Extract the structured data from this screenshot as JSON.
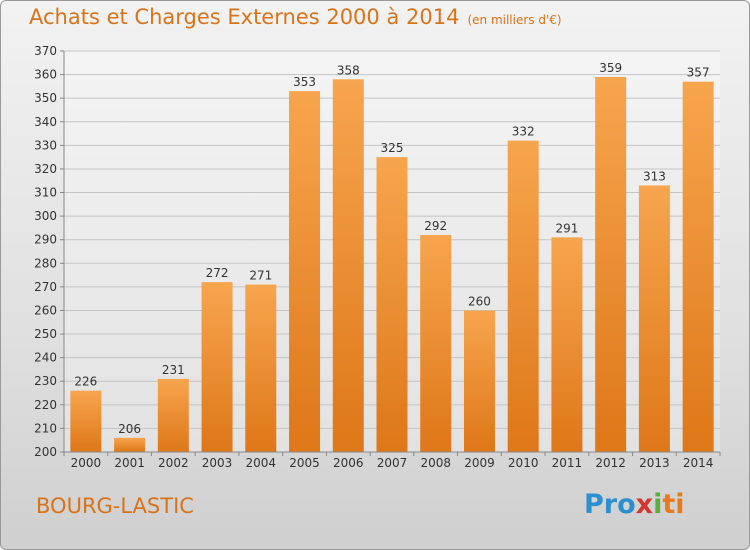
{
  "title": "Achats et Charges Externes 2000 à 2014",
  "subtitle": "(en milliers d'€)",
  "commune": "BOURG-LASTIC",
  "logo": {
    "p1": "Pro",
    "p2": "x",
    "p3": "i",
    "p4": "ti"
  },
  "colors": {
    "accent": "#d9731a",
    "bar_light": "#f7a54e",
    "bar_dark": "#e0781a"
  },
  "chart_data": {
    "type": "bar",
    "categories": [
      "2000",
      "2001",
      "2002",
      "2003",
      "2004",
      "2005",
      "2006",
      "2007",
      "2008",
      "2009",
      "2010",
      "2011",
      "2012",
      "2013",
      "2014"
    ],
    "values": [
      226,
      206,
      231,
      272,
      271,
      353,
      358,
      325,
      292,
      260,
      332,
      291,
      359,
      313,
      357
    ],
    "ylim": [
      200,
      370
    ],
    "ytick_step": 10,
    "grid": true
  }
}
